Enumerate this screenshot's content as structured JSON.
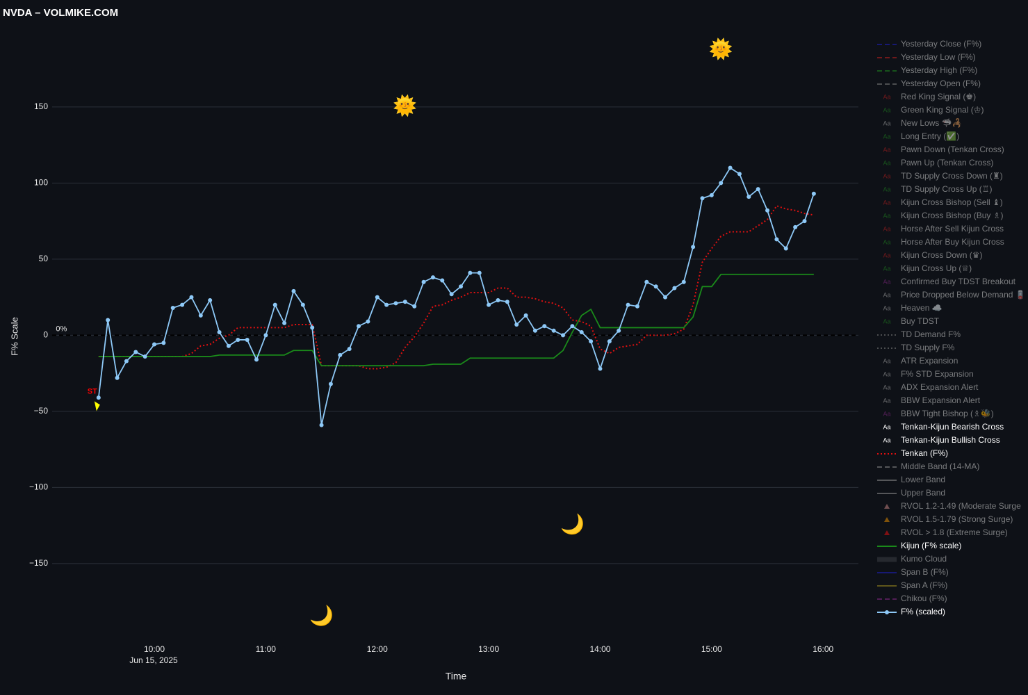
{
  "chart_data": {
    "type": "line",
    "title": "NVDA – VOLMIKE.COM",
    "xlabel": "Time",
    "ylabel": "F% Scale",
    "x_date_label": "Jun 15, 2025",
    "legend_symbol_text": "Aa",
    "background": "#0e1117",
    "grid": true,
    "grid_color": "#2b303a",
    "zero_line": {
      "value": 0,
      "color": "#000000",
      "dash": true
    },
    "xlim": [
      "2025-06-15 09:05",
      "2025-06-15 16:19"
    ],
    "xticks": [
      {
        "value": "2025-06-15 10:00",
        "label": "10:00"
      },
      {
        "value": "2025-06-15 11:00",
        "label": "11:00"
      },
      {
        "value": "2025-06-15 12:00",
        "label": "12:00"
      },
      {
        "value": "2025-06-15 13:00",
        "label": "13:00"
      },
      {
        "value": "2025-06-15 14:00",
        "label": "14:00"
      },
      {
        "value": "2025-06-15 15:00",
        "label": "15:00"
      },
      {
        "value": "2025-06-15 16:00",
        "label": "16:00"
      }
    ],
    "ylim": [
      -198,
      202
    ],
    "yticks": [
      {
        "value": -150,
        "label": "−150"
      },
      {
        "value": -100,
        "label": "−100"
      },
      {
        "value": -50,
        "label": "−50"
      },
      0,
      50,
      100,
      150
    ],
    "x": [
      "2025-06-15 09:30",
      "2025-06-15 09:35",
      "2025-06-15 09:40",
      "2025-06-15 09:45",
      "2025-06-15 09:50",
      "2025-06-15 09:55",
      "2025-06-15 10:00",
      "2025-06-15 10:05",
      "2025-06-15 10:10",
      "2025-06-15 10:15",
      "2025-06-15 10:20",
      "2025-06-15 10:25",
      "2025-06-15 10:30",
      "2025-06-15 10:35",
      "2025-06-15 10:40",
      "2025-06-15 10:45",
      "2025-06-15 10:50",
      "2025-06-15 10:55",
      "2025-06-15 11:00",
      "2025-06-15 11:05",
      "2025-06-15 11:10",
      "2025-06-15 11:15",
      "2025-06-15 11:20",
      "2025-06-15 11:25",
      "2025-06-15 11:30",
      "2025-06-15 11:35",
      "2025-06-15 11:40",
      "2025-06-15 11:45",
      "2025-06-15 11:50",
      "2025-06-15 11:55",
      "2025-06-15 12:00",
      "2025-06-15 12:05",
      "2025-06-15 12:10",
      "2025-06-15 12:15",
      "2025-06-15 12:20",
      "2025-06-15 12:25",
      "2025-06-15 12:30",
      "2025-06-15 12:35",
      "2025-06-15 12:40",
      "2025-06-15 12:45",
      "2025-06-15 12:50",
      "2025-06-15 12:55",
      "2025-06-15 13:00",
      "2025-06-15 13:05",
      "2025-06-15 13:10",
      "2025-06-15 13:15",
      "2025-06-15 13:20",
      "2025-06-15 13:25",
      "2025-06-15 13:30",
      "2025-06-15 13:35",
      "2025-06-15 13:40",
      "2025-06-15 13:45",
      "2025-06-15 13:50",
      "2025-06-15 13:55",
      "2025-06-15 14:00",
      "2025-06-15 14:05",
      "2025-06-15 14:10",
      "2025-06-15 14:15",
      "2025-06-15 14:20",
      "2025-06-15 14:25",
      "2025-06-15 14:30",
      "2025-06-15 14:35",
      "2025-06-15 14:40",
      "2025-06-15 14:45",
      "2025-06-15 14:50",
      "2025-06-15 14:55",
      "2025-06-15 15:00",
      "2025-06-15 15:05",
      "2025-06-15 15:10",
      "2025-06-15 15:15",
      "2025-06-15 15:20",
      "2025-06-15 15:25",
      "2025-06-15 15:30",
      "2025-06-15 15:35",
      "2025-06-15 15:40",
      "2025-06-15 15:45",
      "2025-06-15 15:50",
      "2025-06-15 15:55"
    ],
    "series": [
      {
        "name": "Yesterday Close (F%)",
        "color": "#2020c0",
        "symbol": "dash",
        "visible": "legendonly"
      },
      {
        "name": "Yesterday Low (F%)",
        "color": "#c02020",
        "symbol": "dash",
        "visible": "legendonly"
      },
      {
        "name": "Yesterday High (F%)",
        "color": "#208a20",
        "symbol": "dash",
        "visible": "legendonly"
      },
      {
        "name": "Yesterday Open (F%)",
        "color": "#808080",
        "symbol": "dash",
        "visible": "legendonly"
      },
      {
        "name": "Red King Signal (♚)",
        "color": "#c02020",
        "symbol": "text",
        "visible": "legendonly"
      },
      {
        "name": "Green King Signal (♔)",
        "color": "#208a20",
        "symbol": "text",
        "visible": "legendonly"
      },
      {
        "name": "New Lows 🦈🦂",
        "color": "#b0b0b0",
        "symbol": "text",
        "visible": "legendonly"
      },
      {
        "name": "Long Entry (✅)",
        "color": "#208a20",
        "symbol": "text",
        "visible": "legendonly"
      },
      {
        "name": "Pawn Down (Tenkan Cross)",
        "color": "#c02020",
        "symbol": "text",
        "visible": "legendonly"
      },
      {
        "name": "Pawn Up (Tenkan Cross)",
        "color": "#208a20",
        "symbol": "text",
        "visible": "legendonly"
      },
      {
        "name": "TD Supply Cross Down (♜)",
        "color": "#c02020",
        "symbol": "text",
        "visible": "legendonly"
      },
      {
        "name": "TD Supply Cross Up (♖)",
        "color": "#208a20",
        "symbol": "text",
        "visible": "legendonly"
      },
      {
        "name": "Kijun Cross Bishop (Sell ♝)",
        "color": "#c02020",
        "symbol": "text",
        "visible": "legendonly"
      },
      {
        "name": "Kijun Cross Bishop (Buy ♗)",
        "color": "#208a20",
        "symbol": "text",
        "visible": "legendonly"
      },
      {
        "name": "Horse After Sell Kijun Cross",
        "color": "#c02020",
        "symbol": "text",
        "visible": "legendonly"
      },
      {
        "name": "Horse After Buy Kijun Cross",
        "color": "#208a20",
        "symbol": "text",
        "visible": "legendonly"
      },
      {
        "name": "Kijun Cross Down (♛)",
        "color": "#c02020",
        "symbol": "text",
        "visible": "legendonly"
      },
      {
        "name": "Kijun Cross Up (♕)",
        "color": "#208a20",
        "symbol": "text",
        "visible": "legendonly"
      },
      {
        "name": "Confirmed Buy TDST Breakout",
        "color": "#8a2a8a",
        "symbol": "text",
        "visible": "legendonly"
      },
      {
        "name": "Price Dropped Below Demand 🪫",
        "color": "#b0b0b0",
        "symbol": "text",
        "visible": "legendonly"
      },
      {
        "name": "Heaven ☁️",
        "color": "#b0b0b0",
        "symbol": "text",
        "visible": "legendonly"
      },
      {
        "name": "Buy TDST",
        "color": "#208a20",
        "symbol": "text",
        "visible": "legendonly"
      },
      {
        "name": "TD Demand F%",
        "color": "#808080",
        "symbol": "dot",
        "visible": "legendonly"
      },
      {
        "name": "TD Supply F%",
        "color": "#808080",
        "symbol": "dot",
        "visible": "legendonly"
      },
      {
        "name": "ATR Expansion",
        "color": "#b0b0b0",
        "symbol": "text",
        "visible": "legendonly"
      },
      {
        "name": "F% STD Expansion",
        "color": "#b0b0b0",
        "symbol": "text",
        "visible": "legendonly"
      },
      {
        "name": "ADX Expansion Alert",
        "color": "#b0b0b0",
        "symbol": "text",
        "visible": "legendonly"
      },
      {
        "name": "BBW Expansion Alert",
        "color": "#b0b0b0",
        "symbol": "text",
        "visible": "legendonly"
      },
      {
        "name": "BBW Tight Bishop (♗🐝)",
        "color": "#8a2a8a",
        "symbol": "text",
        "visible": "legendonly"
      },
      {
        "name": "Tenkan-Kijun Bearish Cross",
        "color": "#ffffff",
        "symbol": "text",
        "visible": true
      },
      {
        "name": "Tenkan-Kijun Bullish Cross",
        "color": "#ffffff",
        "symbol": "text",
        "visible": true
      },
      {
        "name": "Tenkan (F%)",
        "color": "#e01010",
        "symbol": "dot",
        "visible": true,
        "values": [
          -14,
          -14,
          -14,
          -14,
          -14,
          -14,
          -14,
          -14,
          -14,
          -14,
          -12,
          -7,
          -6,
          -2,
          0,
          5,
          5,
          5,
          5,
          5,
          5,
          7,
          7,
          7,
          -20,
          -20,
          -20,
          -20,
          -20,
          -22,
          -22,
          -21,
          -18,
          -8,
          -1,
          8,
          19,
          20,
          23,
          25,
          28,
          28,
          28,
          31,
          31,
          25,
          25,
          24,
          22,
          21,
          18,
          10,
          9,
          6,
          -9,
          -12,
          -8,
          -7,
          -6,
          0,
          0,
          0,
          1,
          4,
          20,
          48,
          57,
          65,
          68,
          68,
          68,
          72,
          76,
          85,
          83,
          82,
          80,
          79
        ]
      },
      {
        "name": "Middle Band (14-MA)",
        "color": "#909090",
        "symbol": "dash",
        "visible": "legendonly"
      },
      {
        "name": "Lower Band",
        "color": "#909090",
        "symbol": "line",
        "visible": "legendonly"
      },
      {
        "name": "Upper Band",
        "color": "#909090",
        "symbol": "line",
        "visible": "legendonly"
      },
      {
        "name": "RVOL 1.2-1.49 (Moderate Surge",
        "color": "#c08080",
        "symbol": "triangle",
        "visible": "legendonly"
      },
      {
        "name": "RVOL 1.5-1.79 (Strong Surge)",
        "color": "#e08a00",
        "symbol": "triangle",
        "visible": "legendonly"
      },
      {
        "name": "RVOL > 1.8 (Extreme Surge)",
        "color": "#e01010",
        "symbol": "triangle",
        "visible": "legendonly"
      },
      {
        "name": "Kijun (F% scale)",
        "color": "#1a8a1a",
        "symbol": "line",
        "visible": true,
        "values": [
          -14,
          -14,
          -14,
          -14,
          -14,
          -14,
          -14,
          -14,
          -14,
          -14,
          -14,
          -14,
          -14,
          -13,
          -13,
          -13,
          -13,
          -13,
          -13,
          -13,
          -13,
          -10,
          -10,
          -10,
          -20,
          -20,
          -20,
          -20,
          -20,
          -20,
          -20,
          -20,
          -20,
          -20,
          -20,
          -20,
          -19,
          -19,
          -19,
          -19,
          -15,
          -15,
          -15,
          -15,
          -15,
          -15,
          -15,
          -15,
          -15,
          -15,
          -10,
          2,
          13,
          17,
          5,
          5,
          5,
          5,
          5,
          5,
          5,
          5,
          5,
          5,
          12,
          32,
          32,
          40,
          40,
          40,
          40,
          40,
          40,
          40,
          40,
          40,
          40,
          40
        ]
      },
      {
        "name": "Kumo Cloud",
        "color": "#3a3d44",
        "symbol": "band",
        "visible": "legendonly"
      },
      {
        "name": "Span B (F%)",
        "color": "#2020c0",
        "symbol": "line",
        "visible": "legendonly"
      },
      {
        "name": "Span A (F%)",
        "color": "#a09020",
        "symbol": "line",
        "visible": "legendonly"
      },
      {
        "name": "Chikou (F%)",
        "color": "#8a2a8a",
        "symbol": "dash",
        "visible": "legendonly"
      },
      {
        "name": "F% (scaled)",
        "color": "#8ec9f7",
        "symbol": "markers+lines",
        "visible": true,
        "values": [
          -41,
          10,
          -28,
          -17,
          -11,
          -14,
          -6,
          -5,
          18,
          20,
          25,
          13,
          23,
          2,
          -7,
          -3,
          -3,
          -16,
          0,
          20,
          8,
          29,
          20,
          5,
          -59,
          -32,
          -13,
          -9,
          6,
          9,
          25,
          20,
          21,
          22,
          19,
          35,
          38,
          36,
          27,
          32,
          41,
          41,
          20,
          23,
          22,
          7,
          13,
          3,
          6,
          3,
          0,
          6,
          2,
          -4,
          -22,
          -4,
          3,
          20,
          19,
          35,
          32,
          25,
          31,
          35,
          58,
          90,
          92,
          100,
          110,
          106,
          91,
          96,
          82,
          63,
          57,
          71,
          75,
          93
        ]
      }
    ],
    "annotations": [
      {
        "text": "0%",
        "x": "2025-06-15 09:10",
        "y": 4,
        "color": "#e8e8e8",
        "size": 11
      },
      {
        "text": "ST",
        "x": "2025-06-15 09:30",
        "y": -37,
        "color": "#ff0000",
        "size": 11,
        "arrowcolor": "#ffff00"
      },
      {
        "text": "🌞",
        "x": "2025-06-15 12:15",
        "y": 150,
        "color": "#ffcc33",
        "size": 28
      },
      {
        "text": "🌞",
        "x": "2025-06-15 15:05",
        "y": 187,
        "color": "#ffcc33",
        "size": 28
      },
      {
        "text": "🌙",
        "x": "2025-06-15 13:45",
        "y": -125,
        "color": "#ffcc33",
        "size": 28
      },
      {
        "text": "🌙",
        "x": "2025-06-15 11:30",
        "y": -185,
        "color": "#ffcc33",
        "size": 28
      }
    ]
  }
}
